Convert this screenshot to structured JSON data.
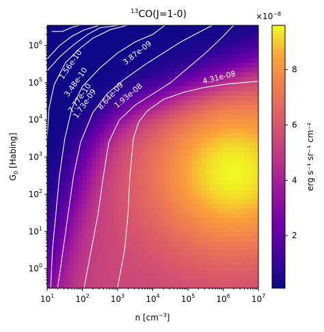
{
  "chart_data": {
    "type": "heatmap",
    "title_pre": "13",
    "title_main": "CO(J=1-0)",
    "xlabel_main": "n [cm",
    "xlabel_sup": "−3",
    "xlabel_post": "]",
    "ylabel_main": "G",
    "ylabel_sub": "0",
    "ylabel_post": " [Habing]",
    "x_scale": "log",
    "y_scale": "log",
    "xlim": [
      10,
      10000000
    ],
    "ylim": [
      0.3,
      3500000
    ],
    "x_ticks": [
      {
        "base": "10",
        "exp": "1"
      },
      {
        "base": "10",
        "exp": "2"
      },
      {
        "base": "10",
        "exp": "3"
      },
      {
        "base": "10",
        "exp": "4"
      },
      {
        "base": "10",
        "exp": "5"
      },
      {
        "base": "10",
        "exp": "6"
      },
      {
        "base": "10",
        "exp": "7"
      }
    ],
    "y_ticks": [
      {
        "base": "10",
        "exp": "0"
      },
      {
        "base": "10",
        "exp": "1"
      },
      {
        "base": "10",
        "exp": "2"
      },
      {
        "base": "10",
        "exp": "3"
      },
      {
        "base": "10",
        "exp": "4"
      },
      {
        "base": "10",
        "exp": "5"
      },
      {
        "base": "10",
        "exp": "6"
      }
    ],
    "colormap": "plasma",
    "colorbar": {
      "label": "erg s⁻¹ sr⁻¹ cm⁻²",
      "multiplier_main": "×10",
      "multiplier_exp": "−8",
      "ticks": [
        "2",
        "4",
        "6",
        "8"
      ],
      "range": [
        0.1,
        9.6
      ]
    },
    "contours": [
      {
        "label": "1.56e-10",
        "points": [
          [
            1.13,
            6.38
          ],
          [
            1.43,
            6.38
          ],
          [
            1.73,
            6.5
          ],
          [
            2.1,
            6.58
          ],
          [
            2.5,
            6.58
          ]
        ]
      },
      {
        "label": "3.48e-10",
        "points": [
          [
            1.0,
            5.64
          ],
          [
            1.35,
            6.0
          ],
          [
            1.7,
            6.25
          ],
          [
            2.05,
            6.42
          ],
          [
            2.5,
            6.55
          ],
          [
            3.0,
            6.55
          ]
        ]
      },
      {
        "label": "7.77e-10",
        "points": [
          [
            0.9,
            5.22
          ],
          [
            1.37,
            5.71
          ],
          [
            1.75,
            6.02
          ],
          [
            2.15,
            6.3
          ],
          [
            2.5,
            6.48
          ],
          [
            3.1,
            6.55
          ]
        ]
      },
      {
        "label": "1.73e-09",
        "points": [
          [
            0.95,
            2.2
          ],
          [
            0.98,
            3.2
          ],
          [
            1.05,
            4.3
          ],
          [
            1.2,
            4.95
          ],
          [
            1.52,
            5.54
          ],
          [
            1.9,
            5.9
          ],
          [
            2.3,
            6.2
          ],
          [
            2.8,
            6.43
          ],
          [
            3.3,
            6.55
          ]
        ]
      },
      {
        "label": "3.87e-09",
        "points": [
          [
            1.1,
            -0.5
          ],
          [
            1.15,
            0.5
          ],
          [
            1.25,
            1.5
          ],
          [
            1.35,
            2.5
          ],
          [
            1.5,
            3.5
          ],
          [
            1.7,
            4.3
          ],
          [
            2.0,
            4.9
          ],
          [
            2.5,
            5.4
          ],
          [
            3.0,
            5.8
          ],
          [
            3.5,
            6.1
          ],
          [
            4.0,
            6.3
          ],
          [
            4.35,
            6.55
          ]
        ]
      },
      {
        "label": "8.64e-09",
        "points": [
          [
            1.3,
            -0.5
          ],
          [
            1.45,
            0.5
          ],
          [
            1.6,
            1.5
          ],
          [
            1.75,
            2.5
          ],
          [
            1.95,
            3.4
          ],
          [
            2.3,
            4.2
          ],
          [
            2.7,
            4.7
          ],
          [
            3.2,
            5.1
          ],
          [
            3.8,
            5.5
          ],
          [
            4.3,
            5.8
          ],
          [
            4.8,
            6.1
          ],
          [
            5.3,
            6.35
          ],
          [
            5.7,
            6.55
          ]
        ]
      },
      {
        "label": "1.93e-08",
        "points": [
          [
            2.05,
            -0.5
          ],
          [
            2.25,
            0.5
          ],
          [
            2.45,
            1.5
          ],
          [
            2.6,
            2.5
          ],
          [
            2.75,
            3.4
          ],
          [
            3.05,
            4.0
          ],
          [
            3.5,
            4.4
          ],
          [
            4.0,
            4.7
          ],
          [
            4.5,
            5.0
          ],
          [
            5.0,
            5.4
          ],
          [
            5.5,
            5.8
          ],
          [
            6.0,
            6.25
          ],
          [
            6.3,
            6.55
          ]
        ]
      },
      {
        "label": "4.31e-08",
        "points": [
          [
            3.0,
            -0.5
          ],
          [
            3.2,
            0.5
          ],
          [
            3.3,
            1.5
          ],
          [
            3.35,
            2.5
          ],
          [
            3.45,
            3.5
          ],
          [
            3.6,
            3.95
          ],
          [
            3.85,
            4.25
          ],
          [
            4.3,
            4.55
          ],
          [
            4.9,
            4.75
          ],
          [
            5.5,
            4.88
          ],
          [
            6.0,
            4.95
          ],
          [
            6.5,
            5.0
          ],
          [
            7.0,
            5.04
          ]
        ]
      }
    ]
  }
}
